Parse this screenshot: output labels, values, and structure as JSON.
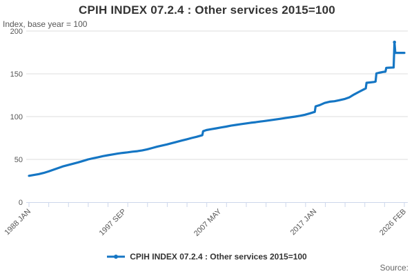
{
  "header": {
    "title": "CPIH INDEX 07.2.4 : Other services 2015=100",
    "subtitle": "Index, base year = 100"
  },
  "legend": {
    "label": "CPIH INDEX 07.2.4 : Other services 2015=100"
  },
  "footer": {
    "source_label": "Source:"
  },
  "colors": {
    "line": "#1576c4",
    "grid": "#dedede",
    "axis": "#ccd6eb",
    "tick_text": "#555555",
    "title_text": "#333333",
    "source_text": "#666666"
  },
  "chart_data": {
    "type": "line",
    "title": "CPIH INDEX 07.2.4 : Other services 2015=100",
    "ylabel": "Index, base year = 100",
    "xlabel": "",
    "ylim": [
      0,
      200
    ],
    "yticks": [
      0,
      50,
      100,
      150,
      200
    ],
    "grid": "horizontal",
    "legend_position": "bottom",
    "x_range": [
      "1988-01",
      "2026-02"
    ],
    "xtick_labels": [
      {
        "label": "1988 JAN",
        "date": "1988-01"
      },
      {
        "label": "1997 SEP",
        "date": "1997-09"
      },
      {
        "label": "2007 MAY",
        "date": "2007-05"
      },
      {
        "label": "2017 JAN",
        "date": "2017-01"
      },
      {
        "label": "2026 FEB",
        "date": "2026-02"
      }
    ],
    "minor_tick_count": 20,
    "series": [
      {
        "name": "CPIH INDEX 07.2.4 : Other services 2015=100",
        "color": "#1576c4",
        "points": [
          [
            "1988-01",
            30.8
          ],
          [
            "1988-07",
            31.8
          ],
          [
            "1989-01",
            32.8
          ],
          [
            "1989-07",
            34.2
          ],
          [
            "1990-01",
            36.0
          ],
          [
            "1990-07",
            38.0
          ],
          [
            "1991-01",
            40.0
          ],
          [
            "1991-07",
            42.0
          ],
          [
            "1992-01",
            43.5
          ],
          [
            "1992-07",
            45.0
          ],
          [
            "1993-01",
            46.5
          ],
          [
            "1993-07",
            48.2
          ],
          [
            "1994-01",
            50.0
          ],
          [
            "1994-07",
            51.3
          ],
          [
            "1995-01",
            52.5
          ],
          [
            "1995-07",
            53.8
          ],
          [
            "1996-01",
            54.8
          ],
          [
            "1996-07",
            55.8
          ],
          [
            "1997-01",
            56.8
          ],
          [
            "1997-07",
            57.6
          ],
          [
            "1998-01",
            58.2
          ],
          [
            "1998-07",
            59.0
          ],
          [
            "1999-01",
            59.6
          ],
          [
            "1999-07",
            60.6
          ],
          [
            "2000-01",
            61.8
          ],
          [
            "2000-07",
            63.3
          ],
          [
            "2001-01",
            64.8
          ],
          [
            "2001-07",
            66.2
          ],
          [
            "2002-01",
            67.5
          ],
          [
            "2002-07",
            69.0
          ],
          [
            "2003-01",
            70.5
          ],
          [
            "2003-07",
            72.0
          ],
          [
            "2004-01",
            73.5
          ],
          [
            "2004-07",
            75.0
          ],
          [
            "2005-01",
            76.4
          ],
          [
            "2005-08",
            78.3
          ],
          [
            "2005-09",
            83.0
          ],
          [
            "2006-01",
            84.3
          ],
          [
            "2006-07",
            85.3
          ],
          [
            "2007-01",
            86.3
          ],
          [
            "2007-07",
            87.3
          ],
          [
            "2008-01",
            88.3
          ],
          [
            "2008-07",
            89.4
          ],
          [
            "2009-01",
            90.3
          ],
          [
            "2009-07",
            91.2
          ],
          [
            "2010-01",
            92.0
          ],
          [
            "2010-07",
            92.8
          ],
          [
            "2011-01",
            93.5
          ],
          [
            "2011-07",
            94.3
          ],
          [
            "2012-01",
            95.0
          ],
          [
            "2012-07",
            95.8
          ],
          [
            "2013-01",
            96.6
          ],
          [
            "2013-07",
            97.4
          ],
          [
            "2014-01",
            98.3
          ],
          [
            "2014-07",
            99.2
          ],
          [
            "2015-01",
            100.0
          ],
          [
            "2015-07",
            101.0
          ],
          [
            "2016-01",
            102.2
          ],
          [
            "2016-07",
            103.8
          ],
          [
            "2016-11",
            105.0
          ],
          [
            "2017-01",
            105.5
          ],
          [
            "2017-02",
            112.0
          ],
          [
            "2017-07",
            113.5
          ],
          [
            "2018-01",
            116.0
          ],
          [
            "2018-07",
            117.4
          ],
          [
            "2019-01",
            118.0
          ],
          [
            "2019-07",
            119.2
          ],
          [
            "2020-01",
            120.5
          ],
          [
            "2020-07",
            122.5
          ],
          [
            "2021-01",
            126.0
          ],
          [
            "2021-07",
            129.0
          ],
          [
            "2022-01",
            132.0
          ],
          [
            "2022-03",
            133.0
          ],
          [
            "2022-04",
            139.5
          ],
          [
            "2022-07",
            139.8
          ],
          [
            "2023-01",
            140.5
          ],
          [
            "2023-03",
            141.0
          ],
          [
            "2023-04",
            150.5
          ],
          [
            "2023-07",
            151.2
          ],
          [
            "2024-01",
            152.3
          ],
          [
            "2024-03",
            152.5
          ],
          [
            "2024-04",
            157.0
          ],
          [
            "2024-07",
            157.2
          ],
          [
            "2025-01",
            157.4
          ],
          [
            "2025-02",
            187.0
          ],
          [
            "2025-03",
            174.5
          ],
          [
            "2025-07",
            174.5
          ],
          [
            "2026-01",
            174.5
          ],
          [
            "2026-02",
            174.5
          ]
        ]
      }
    ]
  }
}
